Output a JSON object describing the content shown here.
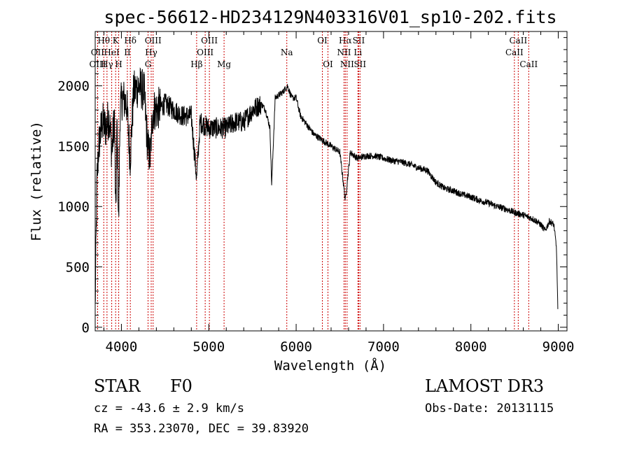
{
  "chart_data": {
    "type": "line",
    "title": "spec-56612-HD234129N403316V01_sp10-202.fits",
    "xlabel": "Wavelength (Å)",
    "ylabel": "Flux (relative)",
    "xlim": [
      3700,
      9100
    ],
    "ylim": [
      -30,
      2450
    ],
    "xticks": [
      4000,
      5000,
      6000,
      7000,
      8000,
      9000
    ],
    "yticks": [
      0,
      500,
      1000,
      1500,
      2000
    ],
    "line_color": "#cc0000",
    "spectrum_color": "#000000",
    "spectrum_anchors": [
      [
        3700,
        150
      ],
      [
        3710,
        700
      ],
      [
        3720,
        1200
      ],
      [
        3740,
        1500
      ],
      [
        3780,
        1700
      ],
      [
        3820,
        1650
      ],
      [
        3860,
        1750
      ],
      [
        3890,
        1450
      ],
      [
        3920,
        1750
      ],
      [
        3935,
        900
      ],
      [
        3950,
        1700
      ],
      [
        3968,
        850
      ],
      [
        3985,
        1800
      ],
      [
        4010,
        1900
      ],
      [
        4060,
        1850
      ],
      [
        4100,
        1400
      ],
      [
        4140,
        1950
      ],
      [
        4200,
        2000
      ],
      [
        4260,
        1950
      ],
      [
        4300,
        1500
      ],
      [
        4330,
        1400
      ],
      [
        4360,
        1800
      ],
      [
        4400,
        1800
      ],
      [
        4500,
        1850
      ],
      [
        4600,
        1800
      ],
      [
        4700,
        1750
      ],
      [
        4800,
        1750
      ],
      [
        4861,
        1230
      ],
      [
        4900,
        1700
      ],
      [
        5000,
        1650
      ],
      [
        5100,
        1650
      ],
      [
        5200,
        1650
      ],
      [
        5300,
        1700
      ],
      [
        5400,
        1700
      ],
      [
        5500,
        1800
      ],
      [
        5600,
        1850
      ],
      [
        5650,
        1800
      ],
      [
        5700,
        1650
      ],
      [
        5720,
        1180
      ],
      [
        5760,
        1900
      ],
      [
        5850,
        1950
      ],
      [
        5900,
        2000
      ],
      [
        5950,
        1900
      ],
      [
        6000,
        1900
      ],
      [
        6050,
        1750
      ],
      [
        6100,
        1700
      ],
      [
        6200,
        1600
      ],
      [
        6300,
        1550
      ],
      [
        6400,
        1500
      ],
      [
        6500,
        1450
      ],
      [
        6563,
        1050
      ],
      [
        6620,
        1450
      ],
      [
        6700,
        1400
      ],
      [
        6800,
        1420
      ],
      [
        6900,
        1420
      ],
      [
        7000,
        1400
      ],
      [
        7100,
        1380
      ],
      [
        7200,
        1370
      ],
      [
        7300,
        1350
      ],
      [
        7400,
        1320
      ],
      [
        7500,
        1300
      ],
      [
        7600,
        1200
      ],
      [
        7700,
        1150
      ],
      [
        7800,
        1130
      ],
      [
        7900,
        1100
      ],
      [
        8000,
        1080
      ],
      [
        8100,
        1050
      ],
      [
        8200,
        1030
      ],
      [
        8300,
        1000
      ],
      [
        8400,
        980
      ],
      [
        8500,
        950
      ],
      [
        8600,
        930
      ],
      [
        8700,
        900
      ],
      [
        8750,
        880
      ],
      [
        8800,
        850
      ],
      [
        8850,
        800
      ],
      [
        8900,
        880
      ],
      [
        8950,
        850
      ],
      [
        8980,
        650
      ],
      [
        8995,
        150
      ]
    ],
    "lines": [
      {
        "label": "Hθ",
        "wave": 3798,
        "row": 1
      },
      {
        "label": "OII",
        "wave": 3727,
        "row": 2
      },
      {
        "label": "OIII",
        "wave": 3728,
        "row": 3
      },
      {
        "label": "HeI",
        "wave": 3889,
        "row": 2
      },
      {
        "label": "Hγ",
        "wave": 3835,
        "row": 3
      },
      {
        "label": "K",
        "wave": 3934,
        "row": 1
      },
      {
        "label": "H",
        "wave": 3969,
        "row": 3
      },
      {
        "label": "Hδ",
        "wave": 4102,
        "row": 1
      },
      {
        "label": "II",
        "wave": 4068,
        "row": 2
      },
      {
        "label": "OIII",
        "wave": 4363,
        "row": 1
      },
      {
        "label": "Hγ",
        "wave": 4341,
        "row": 2
      },
      {
        "label": "G",
        "wave": 4305,
        "row": 3
      },
      {
        "label": "Hβ",
        "wave": 4861,
        "row": 3
      },
      {
        "label": "OIII",
        "wave": 5007,
        "row": 1
      },
      {
        "label": "OIII",
        "wave": 4959,
        "row": 2
      },
      {
        "label": "Mg",
        "wave": 5175,
        "row": 3
      },
      {
        "label": "Na",
        "wave": 5893,
        "row": 2
      },
      {
        "label": "OI",
        "wave": 6300,
        "row": 1
      },
      {
        "label": "OI",
        "wave": 6364,
        "row": 3
      },
      {
        "label": "Hα",
        "wave": 6563,
        "row": 1
      },
      {
        "label": "NII",
        "wave": 6548,
        "row": 2
      },
      {
        "label": "NII",
        "wave": 6583,
        "row": 3
      },
      {
        "label": "SII",
        "wave": 6716,
        "row": 1
      },
      {
        "label": "Li",
        "wave": 6707,
        "row": 2
      },
      {
        "label": "SII",
        "wave": 6731,
        "row": 3
      },
      {
        "label": "CaII",
        "wave": 8542,
        "row": 1
      },
      {
        "label": "CaII",
        "wave": 8498,
        "row": 2
      },
      {
        "label": "CaII",
        "wave": 8662,
        "row": 3
      }
    ]
  },
  "info": {
    "object_class": "STAR",
    "subclass": "F0",
    "survey": "LAMOST DR3",
    "cz": "cz = -43.6 ± 2.9 km/s",
    "obs_date": "Obs-Date: 20131115",
    "coords": "RA = 353.23070, DEC =  39.83920"
  }
}
